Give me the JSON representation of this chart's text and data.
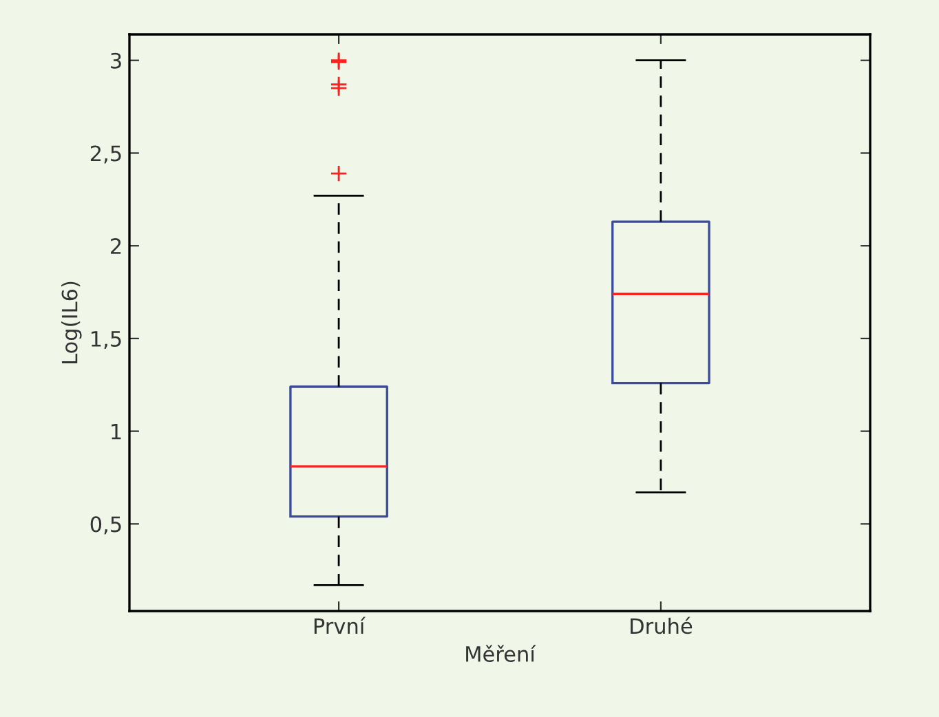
{
  "chart_data": {
    "type": "box",
    "xlabel": "Měření",
    "ylabel": "Log(IL6)",
    "categories": [
      "První",
      "Druhé"
    ],
    "boxes": [
      {
        "low": 0.17,
        "q1": 0.54,
        "median": 0.81,
        "q3": 1.24,
        "high": 2.27,
        "outliers": [
          2.39,
          2.85,
          2.87,
          2.99,
          3.0
        ]
      },
      {
        "low": 0.67,
        "q1": 1.26,
        "median": 1.74,
        "q3": 2.13,
        "high": 3.0
      }
    ],
    "color": "#3a4a9c",
    "ylim": [
      0.03,
      3.14
    ],
    "yticks": [
      {
        "value": 0.5,
        "label": "0,5"
      },
      1,
      {
        "value": 1.5,
        "label": "1,5"
      },
      2,
      {
        "value": 2.5,
        "label": "2,5"
      },
      3
    ],
    "grid": false
  }
}
